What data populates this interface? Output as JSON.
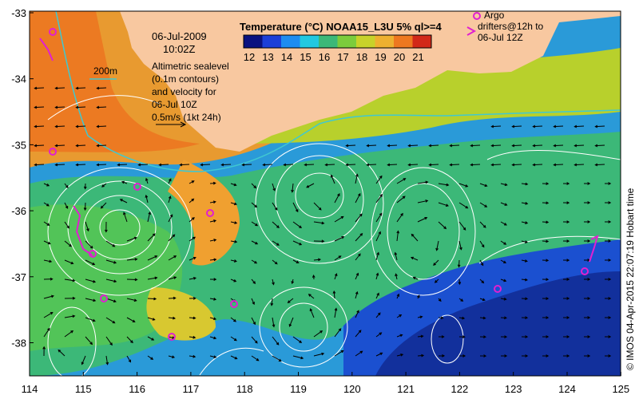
{
  "map": {
    "cbar_title": "Temperature (°C) NOAA15_L3U 5% ql>=4",
    "cbar_ticks": [
      "12",
      "13",
      "14",
      "15",
      "16",
      "17",
      "18",
      "19",
      "20",
      "21"
    ],
    "cbar_colors": [
      "#0a1280",
      "#1c3fd8",
      "#1e8cf0",
      "#22c8e0",
      "#3cb878",
      "#7ccc3c",
      "#c8d22a",
      "#eeb030",
      "#ee7820",
      "#d22818"
    ],
    "date_text": "06-Jul-2009",
    "time_text": "10:02Z",
    "depth_label": "200m",
    "info_lines": [
      "Altimetric sealevel",
      "(0.1m contours)",
      "and velocity for",
      "06-Jul 10Z",
      "0.5m/s (1kt 24h)"
    ],
    "argo_lines": [
      "Argo",
      "drifters@12h to",
      "06-Jul 12Z"
    ],
    "credit": "© IMOS 04-Apr-2015 22:07:19 Hobart time",
    "x_ticks": [
      "114",
      "115",
      "116",
      "117",
      "118",
      "119",
      "120",
      "121",
      "122",
      "123",
      "124",
      "125"
    ],
    "y_ticks": [
      "-33",
      "-34",
      "-35",
      "-36",
      "-37",
      "-38"
    ],
    "land_color": "#f8c8a0",
    "argo_color": "#e020d0"
  }
}
